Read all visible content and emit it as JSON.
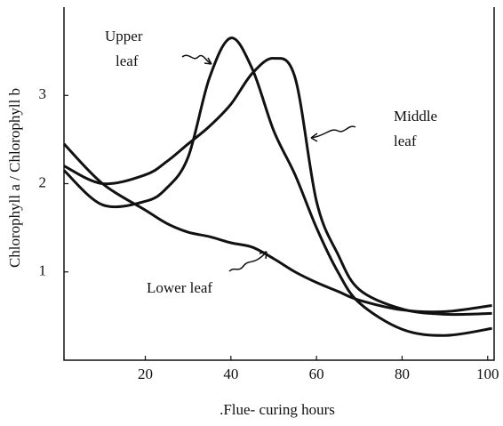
{
  "chart_data": {
    "type": "line",
    "x_label": ".Flue- curing hours",
    "y_label": "Chlorophyll a / Chlorophyll b",
    "x": [
      1,
      10,
      20,
      25,
      30,
      35,
      40,
      45,
      50,
      55,
      60,
      65,
      70,
      80,
      90,
      101
    ],
    "series": [
      {
        "label": [
          "Upper",
          "leaf"
        ],
        "color": "#111111",
        "values": [
          2.15,
          1.76,
          1.8,
          1.95,
          2.3,
          3.2,
          3.65,
          3.3,
          2.6,
          2.1,
          1.5,
          1.0,
          0.65,
          0.35,
          0.28,
          0.36
        ]
      },
      {
        "label": [
          "Middle",
          "leaf"
        ],
        "color": "#111111",
        "values": [
          2.2,
          2.0,
          2.1,
          2.25,
          2.45,
          2.65,
          2.9,
          3.25,
          3.42,
          3.2,
          1.8,
          1.2,
          0.8,
          0.58,
          0.52,
          0.53
        ]
      },
      {
        "label": [
          "Lower leaf"
        ],
        "color": "#111111",
        "values": [
          2.45,
          2.0,
          1.7,
          1.55,
          1.45,
          1.4,
          1.33,
          1.28,
          1.15,
          1.0,
          0.88,
          0.78,
          0.68,
          0.57,
          0.55,
          0.62
        ]
      }
    ],
    "xlim": [
      1,
      101.5
    ],
    "xticks": [
      20,
      40,
      60,
      80,
      100
    ],
    "ylim": [
      0,
      4
    ],
    "yticks": [
      1,
      2,
      3
    ],
    "grid": false
  }
}
